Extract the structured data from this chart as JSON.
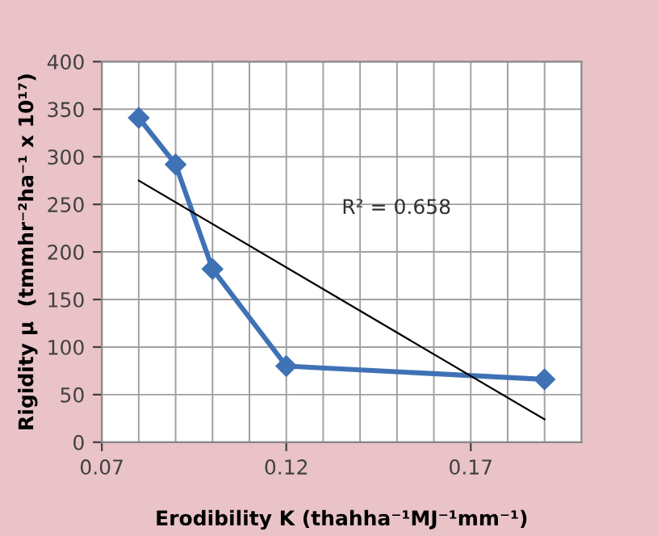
{
  "chart_data": {
    "type": "line",
    "xlabel": "Erodibility K (thahha⁻¹MJ⁻¹mm⁻¹)",
    "ylabel": "Rigidity µ  (tmmhr⁻²ha⁻¹ x 10¹⁷)",
    "x": [
      0.08,
      0.09,
      0.1,
      0.12,
      0.19
    ],
    "series": [
      {
        "color": "#3f72b5",
        "marker": "diamond",
        "values": [
          341,
          292,
          182,
          80,
          66
        ]
      },
      {
        "x": [
          0.08,
          0.19
        ],
        "color": "#000000",
        "marker": "none",
        "values": [
          275,
          24
        ]
      }
    ],
    "annotations": [
      "R² = 0.658"
    ],
    "xlim": [
      0.07,
      0.2
    ],
    "xticks": [
      0.07,
      {
        "value": 0.08,
        "label": null
      },
      {
        "value": 0.09,
        "label": null
      },
      {
        "value": 0.1,
        "label": null
      },
      {
        "value": 0.11,
        "label": null
      },
      0.12,
      {
        "value": 0.13,
        "label": null
      },
      {
        "value": 0.14,
        "label": null
      },
      {
        "value": 0.15,
        "label": null
      },
      {
        "value": 0.16,
        "label": null
      },
      0.17,
      {
        "value": 0.18,
        "label": null
      },
      {
        "value": 0.19,
        "label": null
      }
    ],
    "ylim": [
      0,
      400
    ],
    "yticks": [
      0,
      50,
      100,
      150,
      200,
      250,
      300,
      350,
      400
    ],
    "grid": true,
    "legend": false
  }
}
